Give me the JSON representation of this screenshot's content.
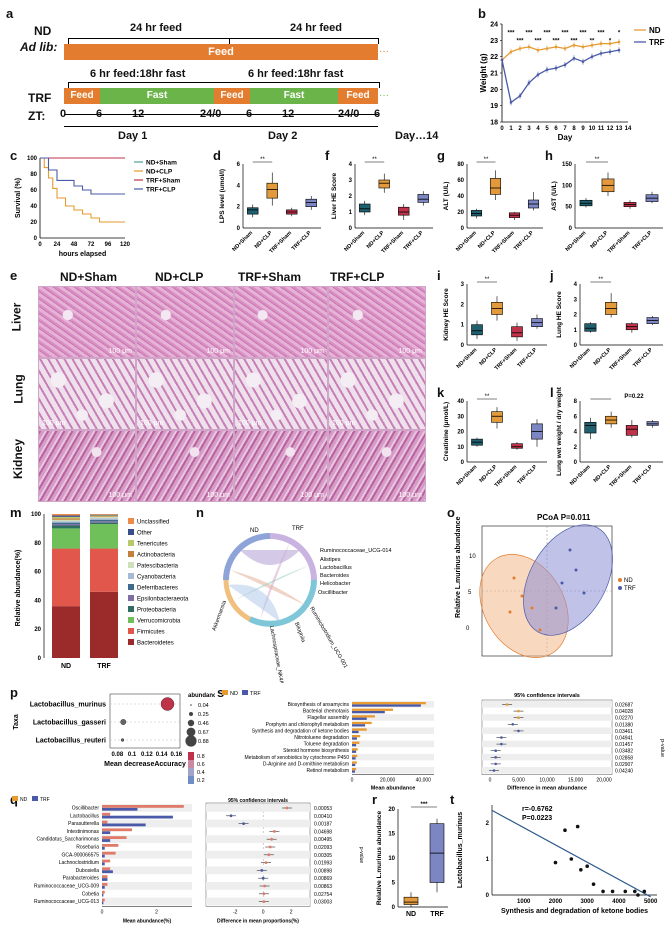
{
  "panels": {
    "a": "a",
    "b": "b",
    "c": "c",
    "d": "d",
    "e": "e",
    "f": "f",
    "g": "g",
    "h": "h",
    "i": "i",
    "j": "j",
    "k": "k",
    "l": "l",
    "m": "m",
    "n": "n",
    "o": "o",
    "p": "p",
    "q": "q",
    "r": "r",
    "s": "s",
    "t": "t"
  },
  "a": {
    "nd": "ND",
    "adlib": "Ad lib:",
    "feed24a": "24 hr feed",
    "feed24b": "24 hr feed",
    "feed": "Feed",
    "trf": "TRF",
    "fast1": "6 hr feed:18hr fast",
    "fast2": "6 hr feed:18hr fast",
    "feedLbl": "Feed",
    "fastLbl": "Fast",
    "zt": "ZT:",
    "ticks": [
      "0",
      "6",
      "12",
      "24/0",
      "6",
      "12",
      "24/0",
      "6"
    ],
    "day1": "Day 1",
    "day2": "Day 2",
    "day14": "Day…14",
    "colors": {
      "feed": "#e37c2e",
      "fast": "#6bb44a"
    }
  },
  "groups": [
    "ND+Sham",
    "ND+CLP",
    "TRF+Sham",
    "TRF+CLP"
  ],
  "colors": {
    "nd": "#e69a2f",
    "trf": "#4a5aa8",
    "g1": "#1f5f6e",
    "g2": "#e39a3c",
    "g3": "#c0314a",
    "g4": "#7b86c2"
  },
  "chart_data": [
    {
      "id": "b",
      "type": "line",
      "title": "",
      "xlabel": "Day",
      "ylabel": "Weight (g)",
      "ylim": [
        18,
        24
      ],
      "x": [
        0,
        1,
        2,
        3,
        4,
        5,
        6,
        7,
        8,
        9,
        10,
        11,
        12,
        13
      ],
      "series": [
        {
          "name": "ND",
          "values": [
            21.8,
            22.3,
            22.5,
            22.6,
            22.4,
            22.5,
            22.6,
            22.5,
            22.7,
            22.6,
            22.7,
            22.8,
            22.8,
            22.9
          ]
        },
        {
          "name": "TRF",
          "values": [
            21.8,
            19.2,
            19.6,
            20.4,
            20.9,
            21.2,
            21.3,
            21.5,
            21.9,
            21.7,
            22.0,
            22.2,
            22.3,
            22.4
          ]
        }
      ],
      "yticks": [
        "18",
        "19",
        "20",
        "21",
        "22",
        "23",
        "24"
      ],
      "xticks": [
        "0",
        "1",
        "2",
        "3",
        "4",
        "5",
        "6",
        "7",
        "8",
        "9",
        "10",
        "11",
        "12",
        "13",
        "14"
      ],
      "stars": [
        "***",
        "***",
        "***",
        "***",
        "***",
        "***",
        "***",
        "***",
        "***",
        "**",
        "***",
        "*",
        "*"
      ],
      "legend": [
        "ND",
        "TRF"
      ]
    },
    {
      "id": "c",
      "type": "line",
      "xlabel": "hours elapsed",
      "ylabel": "Survival (%)",
      "ylim": [
        0,
        100
      ],
      "xticks": [
        "0",
        "24",
        "48",
        "72",
        "96",
        "120"
      ],
      "yticks": [
        "0",
        "20",
        "40",
        "60",
        "80",
        "100"
      ],
      "series": [
        {
          "name": "ND+Sham",
          "x": [
            0,
            120
          ],
          "values": [
            100,
            100
          ]
        },
        {
          "name": "ND+CLP",
          "x": [
            0,
            6,
            12,
            18,
            24,
            36,
            48,
            60,
            72,
            84,
            96,
            120
          ],
          "values": [
            100,
            88,
            75,
            62,
            50,
            40,
            35,
            30,
            25,
            20,
            20,
            20
          ]
        },
        {
          "name": "TRF+Sham",
          "x": [
            0,
            120
          ],
          "values": [
            100,
            100
          ]
        },
        {
          "name": "TRF+CLP",
          "x": [
            0,
            12,
            24,
            48,
            60,
            72,
            96,
            120
          ],
          "values": [
            100,
            85,
            72,
            65,
            60,
            55,
            55,
            55
          ]
        }
      ],
      "legend": [
        "ND+Sham",
        "ND+CLP",
        "TRF+Sham",
        "TRF+CLP"
      ]
    },
    {
      "id": "d",
      "type": "box",
      "ylabel": "LPS level (umol/l)",
      "ylim": [
        0,
        6
      ],
      "yticks": [
        "0",
        "2",
        "4",
        "6"
      ],
      "medians": [
        1.7,
        3.6,
        1.5,
        2.4
      ],
      "q1": [
        1.3,
        2.8,
        1.3,
        2.0
      ],
      "q3": [
        1.9,
        4.2,
        1.7,
        2.7
      ],
      "min": [
        1.0,
        2.1,
        1.1,
        1.7
      ],
      "max": [
        2.2,
        5.2,
        1.9,
        3.0
      ]
    },
    {
      "id": "f",
      "type": "box",
      "ylabel": "Liver HE Score",
      "ylim": [
        0,
        4
      ],
      "yticks": [
        "0",
        "1",
        "2",
        "3",
        "4"
      ],
      "medians": [
        1.2,
        2.8,
        1.0,
        1.8
      ],
      "q1": [
        1.0,
        2.5,
        0.8,
        1.6
      ],
      "q3": [
        1.5,
        3.0,
        1.3,
        2.1
      ],
      "min": [
        0.8,
        2.2,
        0.5,
        1.4
      ],
      "max": [
        1.7,
        3.4,
        1.5,
        2.3
      ]
    },
    {
      "id": "g",
      "type": "box",
      "ylabel": "ALT (U/L)",
      "ylim": [
        0,
        80
      ],
      "yticks": [
        "0",
        "20",
        "40",
        "60",
        "80"
      ],
      "medians": [
        18,
        50,
        16,
        30
      ],
      "q1": [
        15,
        42,
        13,
        25
      ],
      "q3": [
        22,
        62,
        19,
        35
      ],
      "min": [
        12,
        35,
        10,
        22
      ],
      "max": [
        24,
        72,
        20,
        45
      ]
    },
    {
      "id": "h",
      "type": "box",
      "ylabel": "AST (U/L)",
      "ylim": [
        0,
        150
      ],
      "yticks": [
        "0",
        "50",
        "100",
        "150"
      ],
      "medians": [
        58,
        100,
        55,
        70
      ],
      "q1": [
        52,
        85,
        50,
        62
      ],
      "q3": [
        65,
        115,
        60,
        78
      ],
      "min": [
        48,
        75,
        45,
        58
      ],
      "max": [
        70,
        130,
        65,
        85
      ]
    },
    {
      "id": "i",
      "type": "box",
      "ylabel": "Kidney HE Score",
      "ylim": [
        0,
        3
      ],
      "yticks": [
        "0",
        "1",
        "2",
        "3"
      ],
      "medians": [
        0.7,
        1.8,
        0.6,
        1.1
      ],
      "q1": [
        0.5,
        1.5,
        0.4,
        0.9
      ],
      "q3": [
        1.0,
        2.1,
        0.9,
        1.3
      ],
      "min": [
        0.3,
        1.2,
        0.2,
        0.8
      ],
      "max": [
        1.2,
        2.4,
        1.1,
        1.5
      ]
    },
    {
      "id": "j",
      "type": "box",
      "ylabel": "Lung HE Score",
      "ylim": [
        0,
        4
      ],
      "yticks": [
        "0",
        "1",
        "2",
        "3",
        "4"
      ],
      "medians": [
        1.1,
        2.4,
        1.2,
        1.6
      ],
      "q1": [
        0.9,
        2.0,
        1.0,
        1.4
      ],
      "q3": [
        1.4,
        2.8,
        1.4,
        1.8
      ],
      "min": [
        0.8,
        1.8,
        0.8,
        1.3
      ],
      "max": [
        1.5,
        3.4,
        1.5,
        1.9
      ]
    },
    {
      "id": "k",
      "type": "box",
      "ylabel": "Creatinine (μmol/L)",
      "ylim": [
        0,
        40
      ],
      "yticks": [
        "0",
        "10",
        "20",
        "30",
        "40"
      ],
      "medians": [
        13,
        30,
        10,
        20
      ],
      "q1": [
        11,
        26,
        9,
        15
      ],
      "q3": [
        15,
        33,
        12,
        25
      ],
      "min": [
        10,
        22,
        8,
        10
      ],
      "max": [
        16,
        36,
        13,
        28
      ]
    },
    {
      "id": "l",
      "type": "box",
      "ylabel": "Lung wet weight / dry weight",
      "ylim": [
        0,
        8
      ],
      "yticks": [
        "0",
        "2",
        "4",
        "6",
        "8"
      ],
      "medians": [
        4.8,
        5.5,
        4.3,
        5.0
      ],
      "q1": [
        3.8,
        5.0,
        3.5,
        4.8
      ],
      "q3": [
        5.2,
        6.0,
        4.8,
        5.3
      ],
      "min": [
        3.0,
        4.5,
        3.2,
        4.5
      ],
      "max": [
        5.8,
        6.6,
        5.5,
        5.5
      ],
      "note": "P=0.22"
    },
    {
      "id": "m",
      "type": "bar",
      "ylabel": "Relative abundance(%)",
      "categories": [
        "ND",
        "TRF"
      ],
      "yticks": [
        "0",
        "20",
        "40",
        "60",
        "80",
        "100"
      ],
      "series": [
        {
          "name": "Bacteroidetes",
          "values": [
            36,
            46
          ]
        },
        {
          "name": "Firmicutes",
          "values": [
            40,
            30
          ]
        },
        {
          "name": "Verrucomicrobia",
          "values": [
            14,
            17
          ]
        },
        {
          "name": "Proteobacteria",
          "values": [
            2,
            1
          ]
        },
        {
          "name": "Epsilonbacteraeota",
          "values": [
            1,
            1
          ]
        },
        {
          "name": "Deferribacteres",
          "values": [
            1,
            1
          ]
        },
        {
          "name": "Cyanobacteria",
          "values": [
            1,
            1
          ]
        },
        {
          "name": "Patescibacteria",
          "values": [
            1,
            1
          ]
        },
        {
          "name": "Actinobacteria",
          "values": [
            1,
            0.5
          ]
        },
        {
          "name": "Tenericutes",
          "values": [
            1,
            0.5
          ]
        },
        {
          "name": "Other",
          "values": [
            1,
            0.5
          ]
        },
        {
          "name": "Unclassified",
          "values": [
            1,
            0.5
          ]
        }
      ]
    },
    {
      "id": "o",
      "type": "scatter",
      "title": "PCoA  P=0.011",
      "xlabel": "PCo1(14.94%)",
      "ylabel": "PCo2(11.82%)",
      "xticks": [
        "-0.2",
        "0.0",
        "0.2"
      ],
      "yticks": [
        "-0.2",
        "0.0",
        "0.2"
      ],
      "legend": [
        "ND",
        "TRF"
      ]
    },
    {
      "id": "p",
      "type": "scatter",
      "xlabel": "Mean decreaseAccuracy",
      "ylabel": "Taxa",
      "xticks": [
        "0.08",
        "0.1",
        "0.12",
        "0.14",
        "0.16"
      ],
      "categories": [
        "Lactobacillus_murinus",
        "Lactobacillus_gasseri",
        "Lactobacillus_reuteri"
      ],
      "values": [
        0.148,
        0.088,
        0.087
      ],
      "abundance": [
        0.88,
        0.25,
        0.04
      ]
    },
    {
      "id": "q",
      "type": "bar",
      "xlabel": "Mean abundance(%)",
      "xlabel2": "Difference in mean proportions(%)",
      "ci_title": "95% confidence intervals",
      "pvalue_label": "p-value",
      "categories": [
        "Oscillibacter",
        "Lactobacillus",
        "Parasutterella",
        "Intestinimonas",
        "Candidatus_Saccharimonas",
        "Roseburia",
        "GCA-900066575",
        "Lachnoclostridium",
        "Dubosiella",
        "Parabacteroides",
        "Ruminococcaceae_UCG-009",
        "Cobetia",
        "Ruminococcaceae_UCG-013"
      ],
      "nd": [
        3.0,
        0.3,
        0.2,
        1.1,
        0.9,
        0.6,
        0.5,
        0.3,
        0.3,
        0.2,
        0.2,
        0.1,
        0.1
      ],
      "trf": [
        1.3,
        2.6,
        1.6,
        0.3,
        0.3,
        0.1,
        0.1,
        0.1,
        0.4,
        0.2,
        0.1,
        0.05,
        0.05
      ],
      "pvalues": [
        "0.00053",
        "0.00410",
        "0.00187",
        "0.04698",
        "0.00495",
        "0.02093",
        "0.00305",
        "0.01993",
        "0.00898",
        "0.00869",
        "0.00863",
        "0.02754",
        "0.03003"
      ]
    },
    {
      "id": "r",
      "type": "box",
      "ylabel": "Relative L.murinus abundance",
      "categories": [
        "ND",
        "TRF"
      ],
      "yticks": [
        "0",
        "5",
        "10",
        "15",
        "20"
      ],
      "medians": [
        1,
        11
      ],
      "q1": [
        0.5,
        5
      ],
      "q3": [
        2,
        17
      ],
      "min": [
        0,
        3
      ],
      "max": [
        3,
        18
      ],
      "stars": "***"
    },
    {
      "id": "s",
      "type": "bar",
      "xlabel": "Mean abundance",
      "xlabel2": "Difference in mean abundance",
      "ci_title": "95% confidence intervals",
      "pvalue_label": "p-value",
      "xticks": [
        "0",
        "20,000",
        "40,000"
      ],
      "xticks2": [
        "0",
        "5,000",
        "10,000",
        "15,000",
        "20,000"
      ],
      "categories": [
        "Biosynthesis of ansamycins",
        "Bacterial chemotaxis",
        "Flagellar assembly",
        "Porphyrin and chlorophyll metabolism",
        "Synthesis and degradation of ketone bodies",
        "Nitrotoluene degradation",
        "Toluene degradation",
        "Steroid hormone biosynthesis",
        "Metabolism of xenobiotics by cytochrome P450",
        "D-Arginine and D-ornithine metabolism",
        "Retinol metabolism"
      ],
      "nd": [
        45000,
        25000,
        14000,
        12000,
        9000,
        5000,
        4500,
        3500,
        3200,
        3000,
        2500
      ],
      "trf": [
        42000,
        20000,
        9000,
        8000,
        4000,
        3000,
        2500,
        2500,
        2200,
        2000,
        1800
      ],
      "pvalues": [
        "0.02687",
        "0.04028",
        "0.02270",
        "0.01380",
        "0.03461",
        "0.04941",
        "0.01457",
        "0.03482",
        "0.02858",
        "0.02907",
        "0.04240"
      ]
    },
    {
      "id": "t",
      "type": "scatter",
      "xlabel": "Synthesis and degradation of ketone bodies",
      "ylabel": "Lactobacillus_murinus",
      "stats": "r=-0.6762\nP=0.0223",
      "xticks": [
        "1000",
        "2000",
        "3000",
        "4000",
        "5000"
      ],
      "x": [
        2000,
        2300,
        2500,
        2700,
        2800,
        3000,
        3200,
        3500,
        3800,
        4200,
        4500,
        4600,
        4800
      ],
      "y": [
        0.9,
        1.8,
        1.0,
        1.9,
        0.7,
        0.8,
        0.3,
        0.1,
        0.1,
        0.1,
        0.1,
        0.0,
        0.1
      ]
    }
  ],
  "e": {
    "cols": [
      "ND+Sham",
      "ND+CLP",
      "TRF+Sham",
      "TRF+CLP"
    ],
    "rows": [
      "Liver",
      "Lung",
      "Kidney"
    ],
    "scale": "100 μm"
  },
  "n": {
    "labels": [
      "Ruminococcaceae_UCG-014",
      "Alistipes",
      "Lactobacillus",
      "Bacteroides",
      "Helicobacter",
      "Oscillibacter",
      "Ruminiclostridium_UCG-001",
      "Akkermansia",
      "Lachnospiraceae_NK4A136_group",
      "Bilophila"
    ]
  },
  "o_legend": {
    "nd": "ND",
    "trf": "TRF",
    "title": "PCoA P=0.011"
  },
  "p_legend": {
    "title": "abundance",
    "vals": [
      "0.04",
      "0.25",
      "0.46",
      "0.67",
      "0.88"
    ],
    "grad": [
      "0.8",
      "0.6",
      "0.4",
      "0.2"
    ]
  },
  "q_legend": {
    "nd": "ND",
    "trf": "TRF"
  },
  "s_legend": {
    "nd": "ND",
    "trf": "TRF"
  }
}
